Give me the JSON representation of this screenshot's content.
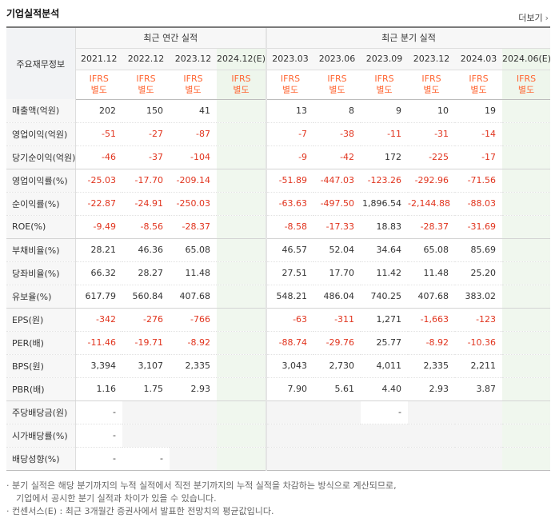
{
  "header": {
    "title": "기업실적분석",
    "more": "더보기"
  },
  "table": {
    "label_header": "주요재무정보",
    "group_annual": "최근 연간 실적",
    "group_quarter": "최근 분기 실적",
    "periods": [
      "2021.12",
      "2022.12",
      "2023.12",
      "2024.12(E)",
      "2023.03",
      "2023.06",
      "2023.09",
      "2023.12",
      "2024.03",
      "2024.06(E)"
    ],
    "ifrs_top": "IFRS",
    "ifrs_bottom": "별도",
    "rows": [
      {
        "label": "매출액(억원)",
        "values": [
          "202",
          "150",
          "41",
          "",
          "13",
          "8",
          "9",
          "10",
          "19",
          ""
        ]
      },
      {
        "label": "영업이익(억원)",
        "values": [
          "-51",
          "-27",
          "-87",
          "",
          "-7",
          "-38",
          "-11",
          "-31",
          "-14",
          ""
        ]
      },
      {
        "label": "당기순이익(억원)",
        "values": [
          "-46",
          "-37",
          "-104",
          "",
          "-9",
          "-42",
          "172",
          "-225",
          "-17",
          ""
        ]
      },
      {
        "label": "영업이익률(%)",
        "values": [
          "-25.03",
          "-17.70",
          "-209.14",
          "",
          "-51.89",
          "-447.03",
          "-123.26",
          "-292.96",
          "-71.56",
          ""
        ]
      },
      {
        "label": "순이익률(%)",
        "values": [
          "-22.87",
          "-24.91",
          "-250.03",
          "",
          "-63.63",
          "-497.50",
          "1,896.54",
          "-2,144.88",
          "-88.03",
          ""
        ]
      },
      {
        "label": "ROE(%)",
        "values": [
          "-9.49",
          "-8.56",
          "-28.37",
          "",
          "-8.58",
          "-17.33",
          "18.83",
          "-28.37",
          "-31.69",
          ""
        ]
      },
      {
        "label": "부채비율(%)",
        "values": [
          "28.21",
          "46.36",
          "65.08",
          "",
          "46.57",
          "52.04",
          "34.64",
          "65.08",
          "85.69",
          ""
        ]
      },
      {
        "label": "당좌비율(%)",
        "values": [
          "66.32",
          "28.27",
          "11.48",
          "",
          "27.51",
          "17.70",
          "11.42",
          "11.48",
          "25.20",
          ""
        ]
      },
      {
        "label": "유보율(%)",
        "values": [
          "617.79",
          "560.84",
          "407.68",
          "",
          "548.21",
          "486.04",
          "740.25",
          "407.68",
          "383.02",
          ""
        ]
      },
      {
        "label": "EPS(원)",
        "values": [
          "-342",
          "-276",
          "-766",
          "",
          "-63",
          "-311",
          "1,271",
          "-1,663",
          "-123",
          ""
        ]
      },
      {
        "label": "PER(배)",
        "values": [
          "-11.46",
          "-19.71",
          "-8.92",
          "",
          "-88.74",
          "-29.76",
          "25.77",
          "-8.92",
          "-10.36",
          ""
        ]
      },
      {
        "label": "BPS(원)",
        "values": [
          "3,394",
          "3,107",
          "2,335",
          "",
          "3,043",
          "2,730",
          "4,011",
          "2,335",
          "2,211",
          ""
        ]
      },
      {
        "label": "PBR(배)",
        "values": [
          "1.16",
          "1.75",
          "2.93",
          "",
          "7.90",
          "5.61",
          "4.40",
          "2.93",
          "3.87",
          ""
        ]
      },
      {
        "label": "주당배당금(원)",
        "values": [
          "-",
          "",
          "",
          "",
          "",
          "",
          "-",
          "",
          "",
          ""
        ]
      },
      {
        "label": "시가배당률(%)",
        "values": [
          "-",
          "",
          "",
          "",
          "",
          "",
          "",
          "",
          "",
          ""
        ]
      },
      {
        "label": "배당성향(%)",
        "values": [
          "-",
          "-",
          "",
          "",
          "",
          "",
          "",
          "",
          "",
          ""
        ]
      }
    ]
  },
  "colors": {
    "negative": "#e1341e",
    "ifrs": "#ff6633",
    "estimate_bg": "#eef6ec"
  },
  "notes": [
    "분기 실적은 해당 분기까지의 누적 실적에서 직전 분기까지의 누적 실적을 차감하는 방식으로 계산되므로,",
    "기업에서 공시한 분기 실적과 차이가 있을 수 있습니다.",
    "컨센서스(E) : 최근 3개월간 증권사에서 발표한 전망치의 평균값입니다."
  ]
}
